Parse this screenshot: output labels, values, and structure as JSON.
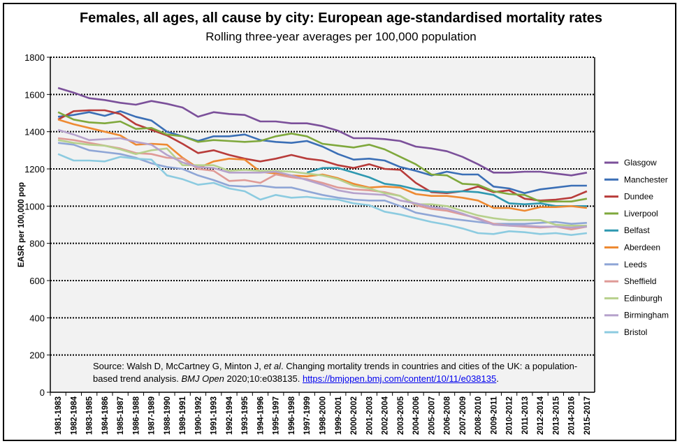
{
  "chart_data": {
    "type": "line",
    "title": "Females, all ages, all cause by city: European age-standardised mortality rates",
    "subtitle": "Rolling three-year averages per 100,000 population",
    "ylabel": "EASR per 100,000 pop",
    "xlabel": "",
    "ylim": [
      0,
      1800
    ],
    "yticks": [
      0,
      200,
      400,
      600,
      800,
      1000,
      1200,
      1400,
      1600,
      1800
    ],
    "grid": "horizontal dotted",
    "legend": "right",
    "categories": [
      "1981-1983",
      "1982-1984",
      "1983-1985",
      "1984-1986",
      "1985-1987",
      "1986-1988",
      "1987-1989",
      "1988-1990",
      "1989-1991",
      "1990-1992",
      "1991-1993",
      "1992-1994",
      "1993-1995",
      "1994-1996",
      "1995-1997",
      "1996-1998",
      "1997-1999",
      "1998-2000",
      "1999-2001",
      "2000-2002",
      "2001-2003",
      "2002-2004",
      "2003-2005",
      "2004-2006",
      "2005-2007",
      "2006-2008",
      "2007-2009",
      "2008-2010",
      "2009-2011",
      "2010-2012",
      "2011-2013",
      "2012-2014",
      "2013-2015",
      "2014-2016",
      "2015-2017"
    ],
    "series": [
      {
        "name": "Glasgow",
        "color": "#7b509a",
        "values": [
          1635,
          1610,
          1580,
          1570,
          1555,
          1545,
          1565,
          1550,
          1530,
          1480,
          1505,
          1495,
          1490,
          1455,
          1455,
          1445,
          1445,
          1430,
          1405,
          1365,
          1365,
          1360,
          1350,
          1320,
          1310,
          1295,
          1265,
          1225,
          1180,
          1180,
          1185,
          1185,
          1175,
          1165,
          1180
        ]
      },
      {
        "name": "Manchester",
        "color": "#3b6fb6",
        "values": [
          1480,
          1490,
          1505,
          1485,
          1510,
          1480,
          1460,
          1400,
          1375,
          1350,
          1375,
          1375,
          1385,
          1355,
          1345,
          1340,
          1350,
          1320,
          1280,
          1250,
          1255,
          1245,
          1210,
          1190,
          1165,
          1185,
          1170,
          1170,
          1105,
          1095,
          1070,
          1090,
          1100,
          1110,
          1110
        ]
      },
      {
        "name": "Dundee",
        "color": "#b83c3a",
        "values": [
          1465,
          1510,
          1515,
          1515,
          1495,
          1440,
          1410,
          1380,
          1335,
          1285,
          1300,
          1275,
          1255,
          1240,
          1255,
          1275,
          1255,
          1245,
          1220,
          1205,
          1225,
          1200,
          1195,
          1125,
          1075,
          1070,
          1080,
          1105,
          1075,
          1085,
          1040,
          1030,
          1035,
          1045,
          1080
        ]
      },
      {
        "name": "Liverpool",
        "color": "#7fa83c",
        "values": [
          1505,
          1465,
          1450,
          1445,
          1455,
          1415,
          1420,
          1385,
          1375,
          1345,
          1355,
          1350,
          1345,
          1350,
          1375,
          1390,
          1375,
          1335,
          1325,
          1315,
          1330,
          1305,
          1265,
          1225,
          1170,
          1165,
          1120,
          1115,
          1080,
          1065,
          1060,
          1025,
          1025,
          1025,
          1040
        ]
      },
      {
        "name": "Belfast",
        "color": "#2e98b0",
        "values": [
          null,
          null,
          null,
          null,
          null,
          null,
          null,
          null,
          null,
          null,
          null,
          null,
          null,
          null,
          null,
          null,
          1180,
          1205,
          1205,
          1180,
          1155,
          1120,
          1110,
          1090,
          1080,
          1075,
          1080,
          1075,
          1060,
          1015,
          1010,
          1015,
          1000,
          1000,
          1000
        ]
      },
      {
        "name": "Aberdeen",
        "color": "#ee8a32",
        "values": [
          1465,
          1440,
          1420,
          1400,
          1380,
          1330,
          1335,
          1330,
          1260,
          1205,
          1240,
          1255,
          1250,
          1185,
          1175,
          1165,
          1160,
          1170,
          1150,
          1120,
          1100,
          1105,
          1100,
          1065,
          1055,
          1055,
          1045,
          1030,
          990,
          990,
          975,
          995,
          995,
          1000,
          990
        ]
      },
      {
        "name": "Leeds",
        "color": "#8fa6d6",
        "values": [
          1340,
          1330,
          1300,
          1290,
          1280,
          1260,
          1230,
          1210,
          1200,
          1165,
          1140,
          1110,
          1105,
          1110,
          1100,
          1100,
          1080,
          1060,
          1045,
          1035,
          1030,
          1030,
          1000,
          965,
          950,
          935,
          925,
          915,
          905,
          905,
          905,
          910,
          915,
          905,
          910
        ]
      },
      {
        "name": "Sheffield",
        "color": "#df9a96",
        "values": [
          1365,
          1355,
          1340,
          1325,
          1310,
          1285,
          1280,
          1260,
          1255,
          1200,
          1190,
          1135,
          1140,
          1125,
          1170,
          1155,
          1145,
          1125,
          1100,
          1090,
          1085,
          1075,
          1055,
          1005,
          985,
          975,
          955,
          935,
          905,
          895,
          890,
          885,
          890,
          875,
          890
        ]
      },
      {
        "name": "Edinburgh",
        "color": "#b7d08c",
        "values": [
          1355,
          1340,
          1330,
          1325,
          1305,
          1280,
          1300,
          1310,
          1220,
          1220,
          1220,
          1190,
          1195,
          1190,
          1190,
          1185,
          1175,
          1165,
          1145,
          1110,
          1095,
          1070,
          1055,
          1010,
          1010,
          1000,
          975,
          950,
          935,
          925,
          925,
          925,
          900,
          895,
          895
        ]
      },
      {
        "name": "Birmingham",
        "color": "#b6a2cc",
        "values": [
          1410,
          1385,
          1355,
          1360,
          1365,
          1345,
          1330,
          1275,
          1235,
          1210,
          1205,
          1180,
          1180,
          1180,
          1185,
          1165,
          1140,
          1115,
          1085,
          1070,
          1065,
          1060,
          1030,
          1015,
          995,
          985,
          960,
          930,
          900,
          895,
          895,
          890,
          890,
          885,
          890
        ]
      },
      {
        "name": "Bristol",
        "color": "#8ccbe0",
        "values": [
          1280,
          1245,
          1245,
          1240,
          1265,
          1255,
          1250,
          1165,
          1145,
          1115,
          1125,
          1095,
          1080,
          1035,
          1060,
          1045,
          1050,
          1040,
          1035,
          1015,
          1005,
          970,
          955,
          935,
          915,
          900,
          880,
          855,
          850,
          865,
          860,
          850,
          855,
          845,
          855
        ]
      }
    ],
    "source": {
      "prefix": "Source: Walsh D, McCartney G, Minton J, ",
      "etal": "et al",
      "middle": ". Changing mortality trends in countries and cities of the UK: a population-based trend analysis. ",
      "journal": "BMJ Open",
      "citation": " 2020;10:e038135. ",
      "link": "https://bmjopen.bmj.com/content/10/11/e038135",
      "suffix": "."
    }
  }
}
